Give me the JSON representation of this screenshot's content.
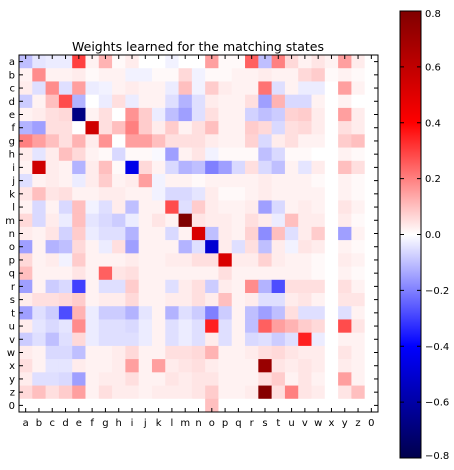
{
  "chart_data": {
    "type": "heatmap",
    "title": "Weights learned for the matching states",
    "xlabel": "",
    "ylabel": "",
    "x_labels": [
      "a",
      "b",
      "c",
      "d",
      "e",
      "f",
      "g",
      "h",
      "i",
      "j",
      "k",
      "l",
      "m",
      "n",
      "o",
      "p",
      "q",
      "r",
      "s",
      "t",
      "u",
      "v",
      "w",
      "x",
      "y",
      "z",
      "0"
    ],
    "y_labels": [
      "a",
      "b",
      "c",
      "d",
      "e",
      "f",
      "g",
      "h",
      "i",
      "j",
      "k",
      "l",
      "m",
      "n",
      "o",
      "p",
      "q",
      "r",
      "s",
      "t",
      "u",
      "v",
      "w",
      "x",
      "y",
      "z",
      "0"
    ],
    "colormap": "seismic",
    "colors": {
      "min": "#00004c",
      "neutral": "#ffffff",
      "max": "#800000"
    },
    "vmin": -0.8,
    "vmax": 0.8,
    "colorbar_ticks": [
      0.8,
      0.6,
      0.4,
      0.2,
      0.0,
      -0.2,
      -0.4,
      -0.6,
      -0.8
    ],
    "colorbar_tick_labels": [
      "0.8",
      "0.6",
      "0.4",
      "0.2",
      "0.0",
      "−0.2",
      "−0.4",
      "−0.6",
      "−0.8"
    ],
    "grid": false,
    "values": [
      [
        -0.1,
        -0.04,
        -0.03,
        -0.03,
        0.3,
        0.02,
        0.12,
        0.01,
        0.03,
        0.0,
        0.0,
        -0.02,
        0.0,
        0.0,
        0.15,
        0.01,
        0.01,
        0.25,
        -0.1,
        0.2,
        0.06,
        0.02,
        0.04,
        0.02,
        0.15,
        0.03,
        0.0
      ],
      [
        0.02,
        0.18,
        0.02,
        0.02,
        0.03,
        0.01,
        0.02,
        0.02,
        -0.02,
        -0.02,
        0.01,
        0.01,
        0.06,
        -0.02,
        0.01,
        0.01,
        0.02,
        0.02,
        0.03,
        0.02,
        0.02,
        0.06,
        0.08,
        0.01,
        0.02,
        0.01,
        0.0
      ],
      [
        0.03,
        -0.05,
        0.18,
        -0.05,
        0.15,
        -0.03,
        -0.02,
        0.02,
        0.03,
        0.02,
        0.02,
        -0.03,
        0.1,
        -0.02,
        0.08,
        0.03,
        0.02,
        0.02,
        0.22,
        -0.05,
        0.02,
        -0.03,
        -0.03,
        0.0,
        0.15,
        0.02,
        0.0
      ],
      [
        -0.08,
        0.02,
        0.1,
        0.28,
        -0.12,
        0.0,
        -0.03,
        0.05,
        -0.03,
        0.02,
        0.02,
        -0.05,
        -0.12,
        -0.05,
        0.03,
        0.02,
        0.02,
        0.05,
        -0.15,
        0.12,
        -0.06,
        -0.06,
        0.02,
        0.0,
        0.02,
        0.0,
        0.0
      ],
      [
        0.02,
        0.03,
        0.05,
        0.06,
        -0.68,
        0.02,
        0.05,
        0.0,
        0.17,
        0.08,
        -0.03,
        -0.1,
        -0.15,
        -0.05,
        0.05,
        0.02,
        0.02,
        -0.07,
        -0.1,
        -0.08,
        0.07,
        0.08,
        0.03,
        0.0,
        0.15,
        0.03,
        0.0
      ],
      [
        -0.12,
        -0.15,
        0.05,
        0.05,
        0.0,
        0.55,
        0.05,
        0.1,
        0.2,
        0.08,
        0.03,
        0.08,
        0.02,
        0.05,
        0.1,
        0.02,
        0.02,
        0.08,
        0.06,
        -0.06,
        0.05,
        0.06,
        0.03,
        0.0,
        0.05,
        0.03,
        0.0
      ],
      [
        0.2,
        0.15,
        0.1,
        0.05,
        0.12,
        0.03,
        0.17,
        0.0,
        0.15,
        0.15,
        0.1,
        0.05,
        0.05,
        0.05,
        0.03,
        0.02,
        0.02,
        0.07,
        -0.06,
        0.03,
        0.05,
        0.02,
        0.02,
        0.0,
        0.08,
        0.1,
        0.0
      ],
      [
        0.03,
        -0.04,
        0.03,
        0.1,
        0.06,
        0.02,
        0.01,
        -0.06,
        0.01,
        0.01,
        -0.01,
        -0.15,
        0.02,
        0.04,
        -0.02,
        0.01,
        0.01,
        0.01,
        -0.1,
        -0.06,
        0.01,
        0.01,
        0.0,
        0.0,
        0.02,
        0.01,
        0.0
      ],
      [
        0.02,
        0.55,
        0.03,
        0.02,
        -0.12,
        0.03,
        0.1,
        0.01,
        -0.45,
        0.06,
        0.02,
        -0.06,
        -0.12,
        -0.1,
        -0.2,
        -0.15,
        -0.06,
        0.05,
        -0.06,
        -0.1,
        0.02,
        -0.04,
        0.03,
        0.0,
        0.1,
        0.05,
        0.0
      ],
      [
        -0.05,
        0.02,
        0.03,
        0.02,
        -0.03,
        0.03,
        0.08,
        0.02,
        0.03,
        0.15,
        -0.02,
        0.02,
        0.02,
        0.01,
        0.02,
        0.02,
        0.02,
        0.02,
        0.03,
        0.02,
        0.02,
        0.02,
        0.01,
        0.0,
        0.02,
        0.01,
        0.0
      ],
      [
        0.04,
        0.1,
        0.04,
        0.05,
        0.02,
        0.02,
        0.03,
        0.03,
        0.02,
        0.02,
        -0.02,
        -0.06,
        -0.06,
        -0.04,
        0.03,
        0.01,
        0.01,
        0.02,
        0.03,
        0.02,
        0.02,
        0.02,
        0.02,
        0.0,
        0.02,
        0.01,
        0.0
      ],
      [
        0.02,
        -0.06,
        0.02,
        -0.06,
        0.1,
        -0.02,
        -0.05,
        0.03,
        -0.1,
        0.02,
        0.02,
        0.28,
        -0.05,
        0.08,
        0.03,
        0.02,
        0.02,
        0.03,
        -0.15,
        -0.06,
        0.02,
        0.03,
        0.02,
        0.0,
        0.04,
        0.02,
        0.0
      ],
      [
        0.06,
        -0.06,
        0.03,
        -0.03,
        0.1,
        -0.04,
        -0.06,
        -0.08,
        -0.03,
        0.02,
        0.04,
        0.02,
        0.82,
        0.04,
        0.03,
        0.03,
        0.02,
        0.05,
        0.03,
        -0.03,
        0.1,
        0.03,
        0.03,
        0.0,
        0.03,
        0.01,
        0.0
      ],
      [
        0.03,
        0.02,
        0.04,
        -0.07,
        0.08,
        -0.03,
        -0.05,
        -0.05,
        -0.12,
        0.02,
        0.02,
        -0.06,
        0.02,
        0.52,
        -0.1,
        0.03,
        0.02,
        0.07,
        -0.18,
        0.1,
        -0.05,
        0.03,
        0.08,
        0.0,
        -0.15,
        0.02,
        0.0
      ],
      [
        -0.15,
        0.02,
        -0.12,
        -0.1,
        0.06,
        0.02,
        -0.03,
        0.05,
        -0.15,
        0.02,
        0.02,
        0.02,
        -0.12,
        -0.05,
        -0.5,
        0.03,
        -0.05,
        0.05,
        -0.1,
        0.03,
        -0.02,
        0.04,
        0.03,
        0.0,
        0.02,
        0.01,
        0.0
      ],
      [
        0.06,
        0.02,
        0.03,
        -0.02,
        0.08,
        0.02,
        0.02,
        0.02,
        0.03,
        0.02,
        0.02,
        0.03,
        0.03,
        0.05,
        0.05,
        0.52,
        0.03,
        0.03,
        0.07,
        0.03,
        0.02,
        0.02,
        0.01,
        0.0,
        0.03,
        0.02,
        0.0
      ],
      [
        0.1,
        0.02,
        0.02,
        0.02,
        0.04,
        0.02,
        0.25,
        0.04,
        0.05,
        0.02,
        0.02,
        0.02,
        0.02,
        0.02,
        0.02,
        0.05,
        0.02,
        0.02,
        0.02,
        0.02,
        0.02,
        0.02,
        0.01,
        0.0,
        0.02,
        0.01,
        0.0
      ],
      [
        -0.15,
        0.02,
        -0.08,
        -0.06,
        -0.3,
        0.02,
        -0.05,
        -0.05,
        0.08,
        0.02,
        0.02,
        -0.05,
        0.03,
        0.05,
        -0.08,
        0.03,
        0.02,
        0.18,
        -0.12,
        -0.28,
        0.05,
        0.05,
        0.05,
        0.0,
        0.05,
        0.02,
        0.0
      ],
      [
        0.03,
        0.05,
        0.05,
        0.06,
        0.08,
        0.02,
        0.03,
        0.03,
        0.06,
        0.02,
        0.02,
        0.03,
        0.03,
        0.05,
        0.03,
        0.1,
        0.02,
        0.03,
        -0.05,
        -0.05,
        0.03,
        0.04,
        0.02,
        0.0,
        0.04,
        0.04,
        0.0
      ],
      [
        -0.15,
        -0.05,
        -0.08,
        -0.28,
        0.12,
        -0.03,
        -0.08,
        -0.08,
        -0.12,
        -0.04,
        0.02,
        -0.12,
        -0.05,
        -0.08,
        -0.2,
        -0.08,
        0.02,
        -0.1,
        -0.15,
        -0.1,
        0.05,
        -0.05,
        -0.05,
        0.0,
        -0.05,
        0.02,
        0.0
      ],
      [
        0.03,
        -0.04,
        -0.06,
        -0.04,
        0.18,
        -0.03,
        -0.05,
        -0.05,
        -0.06,
        -0.03,
        0.02,
        -0.05,
        -0.03,
        -0.05,
        0.35,
        -0.05,
        0.02,
        -0.1,
        0.25,
        0.15,
        0.12,
        0.08,
        0.06,
        0.0,
        0.28,
        0.04,
        0.0
      ],
      [
        -0.08,
        -0.05,
        -0.1,
        -0.05,
        0.06,
        -0.03,
        -0.05,
        -0.05,
        -0.05,
        -0.03,
        0.02,
        -0.05,
        -0.03,
        -0.05,
        0.03,
        -0.05,
        0.02,
        -0.06,
        -0.05,
        -0.08,
        -0.05,
        0.35,
        -0.03,
        0.0,
        0.02,
        0.02,
        0.0
      ],
      [
        0.03,
        0.02,
        -0.06,
        -0.06,
        -0.1,
        0.02,
        0.02,
        0.03,
        0.06,
        0.02,
        0.02,
        0.05,
        0.05,
        0.06,
        0.12,
        0.02,
        0.02,
        0.03,
        0.05,
        0.06,
        0.04,
        0.03,
        0.03,
        0.0,
        0.04,
        0.02,
        0.0
      ],
      [
        0.05,
        0.02,
        -0.04,
        -0.04,
        0.03,
        0.02,
        0.02,
        0.03,
        0.15,
        0.02,
        0.15,
        0.03,
        0.04,
        0.05,
        0.03,
        0.02,
        0.02,
        0.02,
        0.72,
        0.04,
        0.03,
        0.04,
        0.03,
        0.0,
        0.03,
        0.02,
        0.0
      ],
      [
        0.03,
        -0.05,
        -0.05,
        -0.06,
        -0.15,
        0.02,
        0.03,
        0.03,
        0.05,
        0.02,
        0.02,
        0.04,
        0.03,
        0.04,
        0.04,
        0.02,
        0.02,
        0.02,
        0.05,
        0.08,
        0.02,
        0.04,
        0.02,
        0.0,
        0.15,
        0.02,
        0.0
      ],
      [
        0.06,
        0.1,
        0.05,
        0.08,
        0.15,
        0.02,
        0.05,
        0.03,
        0.03,
        0.02,
        0.03,
        0.03,
        0.03,
        0.04,
        0.08,
        0.02,
        0.02,
        0.03,
        0.78,
        0.05,
        0.2,
        0.04,
        0.03,
        0.0,
        0.04,
        0.1,
        0.0
      ],
      [
        0.0,
        0.0,
        0.0,
        0.0,
        0.0,
        0.0,
        0.0,
        0.0,
        0.0,
        0.0,
        0.0,
        0.0,
        0.0,
        0.0,
        0.1,
        0.0,
        0.0,
        0.0,
        0.0,
        0.0,
        0.0,
        0.0,
        0.0,
        0.0,
        0.0,
        0.0,
        0.0
      ]
    ]
  }
}
